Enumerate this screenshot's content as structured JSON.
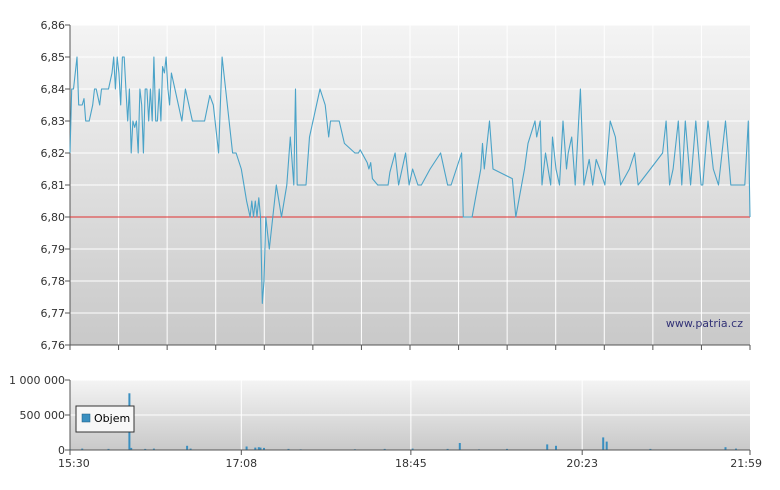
{
  "chart_data": [
    {
      "type": "line",
      "title": "",
      "xlabel": "",
      "ylabel": "",
      "ylim": [
        6.76,
        6.86
      ],
      "yticks": [
        "6,76",
        "6,77",
        "6,78",
        "6,79",
        "6,80",
        "6,81",
        "6,82",
        "6,83",
        "6,84",
        "6,85",
        "6,86"
      ],
      "reference_line": {
        "value": 6.8,
        "color": "#e03030"
      },
      "grid": true,
      "x_range": [
        "15:30",
        "21:59"
      ],
      "series": [
        {
          "color": "#4aa3c8",
          "points": [
            [
              "15:30",
              6.82
            ],
            [
              "15:31",
              6.84
            ],
            [
              "15:32",
              6.84
            ],
            [
              "15:34",
              6.85
            ],
            [
              "15:35",
              6.835
            ],
            [
              "15:37",
              6.835
            ],
            [
              "15:38",
              6.837
            ],
            [
              "15:39",
              6.83
            ],
            [
              "15:41",
              6.83
            ],
            [
              "15:43",
              6.835
            ],
            [
              "15:44",
              6.84
            ],
            [
              "15:45",
              6.84
            ],
            [
              "15:47",
              6.835
            ],
            [
              "15:48",
              6.84
            ],
            [
              "15:50",
              6.84
            ],
            [
              "15:52",
              6.84
            ],
            [
              "15:54",
              6.845
            ],
            [
              "15:55",
              6.85
            ],
            [
              "15:56",
              6.84
            ],
            [
              "15:57",
              6.85
            ],
            [
              "15:58",
              6.845
            ],
            [
              "15:59",
              6.835
            ],
            [
              "16:00",
              6.85
            ],
            [
              "16:01",
              6.85
            ],
            [
              "16:02",
              6.84
            ],
            [
              "16:03",
              6.83
            ],
            [
              "16:04",
              6.84
            ],
            [
              "16:05",
              6.82
            ],
            [
              "16:06",
              6.83
            ],
            [
              "16:07",
              6.828
            ],
            [
              "16:08",
              6.83
            ],
            [
              "16:09",
              6.82
            ],
            [
              "16:10",
              6.84
            ],
            [
              "16:11",
              6.835
            ],
            [
              "16:12",
              6.82
            ],
            [
              "16:13",
              6.84
            ],
            [
              "16:14",
              6.84
            ],
            [
              "16:15",
              6.83
            ],
            [
              "16:16",
              6.84
            ],
            [
              "16:17",
              6.83
            ],
            [
              "16:18",
              6.85
            ],
            [
              "16:19",
              6.83
            ],
            [
              "16:20",
              6.83
            ],
            [
              "16:21",
              6.84
            ],
            [
              "16:22",
              6.83
            ],
            [
              "16:23",
              6.847
            ],
            [
              "16:24",
              6.845
            ],
            [
              "16:25",
              6.85
            ],
            [
              "16:26",
              6.84
            ],
            [
              "16:27",
              6.835
            ],
            [
              "16:28",
              6.845
            ],
            [
              "16:30",
              6.84
            ],
            [
              "16:32",
              6.835
            ],
            [
              "16:34",
              6.83
            ],
            [
              "16:36",
              6.84
            ],
            [
              "16:38",
              6.835
            ],
            [
              "16:40",
              6.83
            ],
            [
              "16:42",
              6.83
            ],
            [
              "16:44",
              6.83
            ],
            [
              "16:47",
              6.83
            ],
            [
              "16:50",
              6.838
            ],
            [
              "16:52",
              6.835
            ],
            [
              "16:55",
              6.82
            ],
            [
              "16:57",
              6.85
            ],
            [
              "16:59",
              6.84
            ],
            [
              "17:01",
              6.83
            ],
            [
              "17:03",
              6.82
            ],
            [
              "17:05",
              6.82
            ],
            [
              "17:08",
              6.815
            ],
            [
              "17:11",
              6.805
            ],
            [
              "17:13",
              6.8
            ],
            [
              "17:14",
              6.805
            ],
            [
              "17:15",
              6.8
            ],
            [
              "17:16",
              6.805
            ],
            [
              "17:17",
              6.8
            ],
            [
              "17:18",
              6.806
            ],
            [
              "17:19",
              6.8
            ],
            [
              "17:20",
              6.773
            ],
            [
              "17:21",
              6.78
            ],
            [
              "17:22",
              6.8
            ],
            [
              "17:24",
              6.79
            ],
            [
              "17:26",
              6.8
            ],
            [
              "17:28",
              6.81
            ],
            [
              "17:31",
              6.8
            ],
            [
              "17:34",
              6.81
            ],
            [
              "17:36",
              6.825
            ],
            [
              "17:38",
              6.81
            ],
            [
              "17:39",
              6.84
            ],
            [
              "17:40",
              6.81
            ],
            [
              "17:44",
              6.81
            ],
            [
              "17:45",
              6.81
            ],
            [
              "17:47",
              6.825
            ],
            [
              "17:53",
              6.84
            ],
            [
              "17:56",
              6.835
            ],
            [
              "17:58",
              6.825
            ],
            [
              "17:59",
              6.83
            ],
            [
              "18:04",
              6.83
            ],
            [
              "18:07",
              6.823
            ],
            [
              "18:13",
              6.82
            ],
            [
              "18:15",
              6.82
            ],
            [
              "18:16",
              6.821
            ],
            [
              "18:20",
              6.817
            ],
            [
              "18:21",
              6.815
            ],
            [
              "18:22",
              6.817
            ],
            [
              "18:23",
              6.812
            ],
            [
              "18:26",
              6.81
            ],
            [
              "18:28",
              6.81
            ],
            [
              "18:32",
              6.81
            ],
            [
              "18:33",
              6.814
            ],
            [
              "18:36",
              6.82
            ],
            [
              "18:38",
              6.81
            ],
            [
              "18:40",
              6.815
            ],
            [
              "18:42",
              6.82
            ],
            [
              "18:44",
              6.81
            ],
            [
              "18:46",
              6.815
            ],
            [
              "18:49",
              6.81
            ],
            [
              "18:51",
              6.81
            ],
            [
              "18:56",
              6.815
            ],
            [
              "19:02",
              6.82
            ],
            [
              "19:06",
              6.81
            ],
            [
              "19:08",
              6.81
            ],
            [
              "19:14",
              6.82
            ],
            [
              "19:15",
              6.8
            ],
            [
              "19:20",
              6.8
            ],
            [
              "19:25",
              6.815
            ],
            [
              "19:26",
              6.823
            ],
            [
              "19:27",
              6.815
            ],
            [
              "19:30",
              6.83
            ],
            [
              "19:32",
              6.815
            ],
            [
              "19:43",
              6.812
            ],
            [
              "19:45",
              6.8
            ],
            [
              "19:50",
              6.815
            ],
            [
              "19:52",
              6.823
            ],
            [
              "19:56",
              6.83
            ],
            [
              "19:57",
              6.825
            ],
            [
              "19:59",
              6.83
            ],
            [
              "20:00",
              6.81
            ],
            [
              "20:02",
              6.82
            ],
            [
              "20:05",
              6.81
            ],
            [
              "20:06",
              6.825
            ],
            [
              "20:08",
              6.815
            ],
            [
              "20:10",
              6.81
            ],
            [
              "20:12",
              6.83
            ],
            [
              "20:14",
              6.815
            ],
            [
              "20:15",
              6.82
            ],
            [
              "20:17",
              6.825
            ],
            [
              "20:19",
              6.81
            ],
            [
              "20:22",
              6.84
            ],
            [
              "20:24",
              6.81
            ],
            [
              "20:27",
              6.818
            ],
            [
              "20:29",
              6.81
            ],
            [
              "20:31",
              6.818
            ],
            [
              "20:33",
              6.815
            ],
            [
              "20:36",
              6.81
            ],
            [
              "20:39",
              6.83
            ],
            [
              "20:42",
              6.825
            ],
            [
              "20:45",
              6.81
            ],
            [
              "20:50",
              6.815
            ],
            [
              "20:53",
              6.82
            ],
            [
              "20:55",
              6.81
            ],
            [
              "21:02",
              6.815
            ],
            [
              "21:09",
              6.82
            ],
            [
              "21:11",
              6.83
            ],
            [
              "21:13",
              6.81
            ],
            [
              "21:15",
              6.815
            ],
            [
              "21:18",
              6.83
            ],
            [
              "21:20",
              6.81
            ],
            [
              "21:22",
              6.83
            ],
            [
              "21:25",
              6.81
            ],
            [
              "21:28",
              6.83
            ],
            [
              "21:31",
              6.81
            ],
            [
              "21:32",
              6.81
            ],
            [
              "21:35",
              6.83
            ],
            [
              "21:38",
              6.815
            ],
            [
              "21:41",
              6.81
            ],
            [
              "21:45",
              6.83
            ],
            [
              "21:48",
              6.81
            ],
            [
              "21:52",
              6.81
            ],
            [
              "21:56",
              6.81
            ],
            [
              "21:58",
              6.83
            ],
            [
              "21:59",
              6.8
            ]
          ]
        }
      ]
    },
    {
      "type": "bar",
      "title": "",
      "xlabel": "",
      "ylabel": "",
      "ylim": [
        0,
        1000000
      ],
      "yticks": [
        "0",
        "500 000",
        "1 000 000"
      ],
      "grid": true,
      "x_range": [
        "15:30",
        "21:59"
      ],
      "xticks": [
        "15:30",
        "17:08",
        "18:45",
        "20:23",
        "21:59"
      ],
      "series": [
        {
          "name": "Objem",
          "color": "#3a8fc0",
          "points": [
            [
              "15:30",
              10000
            ],
            [
              "15:37",
              20000
            ],
            [
              "15:52",
              15000
            ],
            [
              "16:04",
              810000
            ],
            [
              "16:05",
              30000
            ],
            [
              "16:13",
              15000
            ],
            [
              "16:18",
              20000
            ],
            [
              "16:37",
              60000
            ],
            [
              "16:39",
              20000
            ],
            [
              "17:11",
              50000
            ],
            [
              "17:16",
              35000
            ],
            [
              "17:18",
              40000
            ],
            [
              "17:19",
              35000
            ],
            [
              "17:21",
              30000
            ],
            [
              "17:35",
              15000
            ],
            [
              "17:42",
              10000
            ],
            [
              "18:13",
              12000
            ],
            [
              "18:30",
              15000
            ],
            [
              "18:46",
              20000
            ],
            [
              "19:06",
              15000
            ],
            [
              "19:13",
              100000
            ],
            [
              "19:24",
              10000
            ],
            [
              "19:40",
              15000
            ],
            [
              "20:03",
              80000
            ],
            [
              "20:08",
              60000
            ],
            [
              "20:35",
              180000
            ],
            [
              "20:37",
              120000
            ],
            [
              "21:02",
              15000
            ],
            [
              "21:45",
              40000
            ],
            [
              "21:51",
              20000
            ]
          ]
        }
      ]
    }
  ],
  "watermark": "www.patria.cz",
  "legend": {
    "label": "Objem"
  }
}
